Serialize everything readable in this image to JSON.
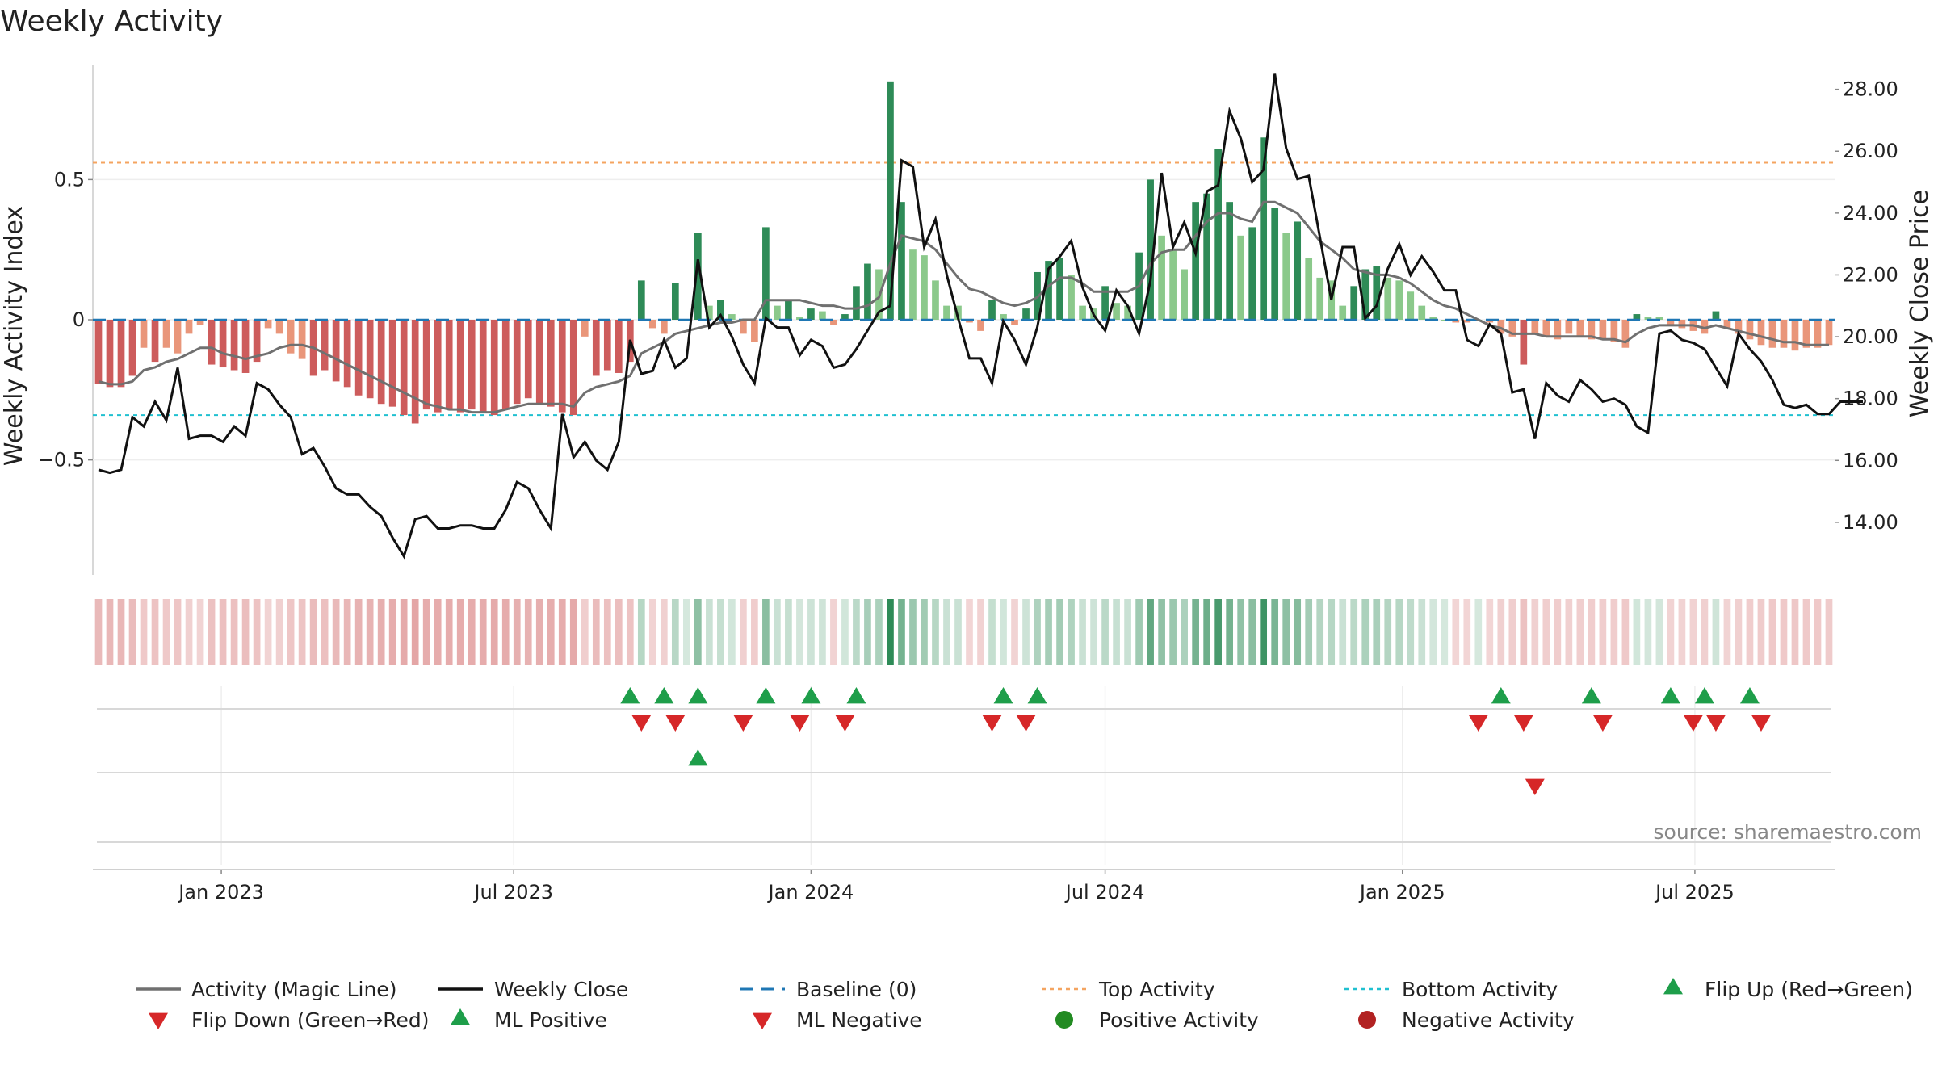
{
  "chart_data": {
    "type": "bar",
    "title": "Weekly Activity",
    "ylabel_left": "Weekly Activity Index",
    "ylabel_right": "Weekly Close Price",
    "source": "source: sharemaestro.com",
    "x_ticks": [
      "Jan 2023",
      "Jul 2023",
      "Jan 2024",
      "Jul 2024",
      "Jan 2025",
      "Jul 2025"
    ],
    "y_left_ticks": [
      {
        "value": 0.5,
        "label": "0.5"
      },
      {
        "value": 0.0,
        "label": "0"
      },
      {
        "value": -0.5,
        "label": "−0.5"
      }
    ],
    "y_right_ticks": [
      "14.00",
      "16.00",
      "18.00",
      "20.00",
      "22.00",
      "24.00",
      "26.00",
      "28.00"
    ],
    "ylim_left": [
      -0.91,
      0.91
    ],
    "ylim_right": [
      12.3,
      28.8
    ],
    "top_activity": 0.56,
    "bottom_activity": -0.34,
    "baseline": 0,
    "start_week": "2022-10-17",
    "activity": [
      -0.23,
      -0.24,
      -0.24,
      -0.2,
      -0.1,
      -0.15,
      -0.1,
      -0.12,
      -0.05,
      -0.02,
      -0.16,
      -0.17,
      -0.18,
      -0.19,
      -0.15,
      -0.03,
      -0.05,
      -0.12,
      -0.14,
      -0.2,
      -0.18,
      -0.22,
      -0.24,
      -0.27,
      -0.28,
      -0.3,
      -0.31,
      -0.34,
      -0.37,
      -0.32,
      -0.33,
      -0.32,
      -0.33,
      -0.32,
      -0.33,
      -0.34,
      -0.32,
      -0.3,
      -0.28,
      -0.3,
      -0.31,
      -0.33,
      -0.34,
      -0.06,
      -0.2,
      -0.18,
      -0.19,
      -0.15,
      0.14,
      -0.03,
      -0.05,
      0.13,
      0.0,
      0.31,
      0.05,
      0.07,
      0.02,
      -0.05,
      -0.08,
      0.33,
      0.05,
      0.07,
      0.01,
      0.04,
      0.03,
      -0.02,
      0.02,
      0.12,
      0.2,
      0.18,
      0.85,
      0.42,
      0.25,
      0.23,
      0.14,
      0.05,
      0.05,
      -0.01,
      -0.04,
      0.07,
      0.02,
      -0.02,
      0.04,
      0.17,
      0.21,
      0.22,
      0.16,
      0.05,
      0.04,
      0.12,
      0.06,
      0.05,
      0.24,
      0.5,
      0.3,
      0.25,
      0.18,
      0.42,
      0.45,
      0.61,
      0.42,
      0.3,
      0.33,
      0.65,
      0.4,
      0.31,
      0.35,
      0.22,
      0.15,
      0.14,
      0.05,
      0.12,
      0.18,
      0.19,
      0.15,
      0.14,
      0.1,
      0.05,
      0.01,
      0.0,
      -0.01,
      -0.01,
      0.0,
      -0.01,
      -0.05,
      -0.06,
      -0.16,
      -0.05,
      -0.06,
      -0.07,
      -0.05,
      -0.06,
      -0.07,
      -0.07,
      -0.08,
      -0.1,
      0.02,
      0.01,
      0.01,
      -0.02,
      -0.03,
      -0.04,
      -0.05,
      0.03,
      -0.03,
      -0.05,
      -0.07,
      -0.09,
      -0.1,
      -0.1,
      -0.11,
      -0.1,
      -0.1,
      -0.09
    ],
    "magic_line": [
      -0.22,
      -0.23,
      -0.23,
      -0.22,
      -0.18,
      -0.17,
      -0.15,
      -0.14,
      -0.12,
      -0.1,
      -0.1,
      -0.12,
      -0.13,
      -0.14,
      -0.13,
      -0.12,
      -0.1,
      -0.09,
      -0.09,
      -0.1,
      -0.12,
      -0.14,
      -0.16,
      -0.18,
      -0.2,
      -0.22,
      -0.24,
      -0.26,
      -0.28,
      -0.3,
      -0.31,
      -0.32,
      -0.32,
      -0.33,
      -0.33,
      -0.33,
      -0.32,
      -0.31,
      -0.3,
      -0.3,
      -0.3,
      -0.3,
      -0.31,
      -0.26,
      -0.24,
      -0.23,
      -0.22,
      -0.2,
      -0.12,
      -0.1,
      -0.08,
      -0.05,
      -0.04,
      -0.03,
      -0.02,
      -0.01,
      -0.01,
      0.0,
      0.0,
      0.07,
      0.07,
      0.07,
      0.07,
      0.06,
      0.05,
      0.05,
      0.04,
      0.04,
      0.05,
      0.08,
      0.2,
      0.3,
      0.29,
      0.28,
      0.25,
      0.2,
      0.15,
      0.11,
      0.1,
      0.08,
      0.06,
      0.05,
      0.06,
      0.08,
      0.12,
      0.15,
      0.15,
      0.13,
      0.1,
      0.1,
      0.1,
      0.1,
      0.12,
      0.2,
      0.24,
      0.25,
      0.25,
      0.3,
      0.35,
      0.38,
      0.38,
      0.36,
      0.35,
      0.42,
      0.42,
      0.4,
      0.38,
      0.33,
      0.28,
      0.25,
      0.22,
      0.18,
      0.17,
      0.16,
      0.16,
      0.15,
      0.13,
      0.1,
      0.07,
      0.05,
      0.04,
      0.02,
      0.0,
      -0.02,
      -0.03,
      -0.05,
      -0.05,
      -0.05,
      -0.06,
      -0.06,
      -0.06,
      -0.06,
      -0.06,
      -0.07,
      -0.07,
      -0.08,
      -0.05,
      -0.03,
      -0.02,
      -0.02,
      -0.02,
      -0.02,
      -0.03,
      -0.02,
      -0.03,
      -0.04,
      -0.05,
      -0.06,
      -0.07,
      -0.08,
      -0.08,
      -0.09,
      -0.09,
      -0.09
    ],
    "weekly_close": [
      15.7,
      15.6,
      15.7,
      17.4,
      17.1,
      17.9,
      17.3,
      19.0,
      16.7,
      16.8,
      16.8,
      16.6,
      17.1,
      16.8,
      18.5,
      18.3,
      17.8,
      17.4,
      16.2,
      16.4,
      15.8,
      15.1,
      14.9,
      14.9,
      14.5,
      14.2,
      13.5,
      12.9,
      14.1,
      14.2,
      13.8,
      13.8,
      13.9,
      13.9,
      13.8,
      13.8,
      14.4,
      15.3,
      15.1,
      14.4,
      13.8,
      17.5,
      16.1,
      16.6,
      16.0,
      15.7,
      16.6,
      19.9,
      18.8,
      18.9,
      19.9,
      19.0,
      19.3,
      22.5,
      20.3,
      20.7,
      20.0,
      19.1,
      18.5,
      20.6,
      20.3,
      20.3,
      19.4,
      19.9,
      19.7,
      19.0,
      19.1,
      19.6,
      20.2,
      20.8,
      21.0,
      25.7,
      25.5,
      22.9,
      23.8,
      22.0,
      20.6,
      19.3,
      19.3,
      18.5,
      20.5,
      19.9,
      19.1,
      20.3,
      22.2,
      22.6,
      23.1,
      21.6,
      20.7,
      20.2,
      21.5,
      21.0,
      20.1,
      21.8,
      25.3,
      22.9,
      23.7,
      22.7,
      24.7,
      24.9,
      27.3,
      26.4,
      25.0,
      25.4,
      28.5,
      26.1,
      25.1,
      25.2,
      23.2,
      21.2,
      22.9,
      22.9,
      20.6,
      21.0,
      22.2,
      23.0,
      22.0,
      22.6,
      22.1,
      21.5,
      21.5,
      19.9,
      19.7,
      20.4,
      20.1,
      18.2,
      18.3,
      16.7,
      18.5,
      18.1,
      17.9,
      18.6,
      18.3,
      17.9,
      18.0,
      17.8,
      17.1,
      16.9,
      20.1,
      20.2,
      19.9,
      19.8,
      19.6,
      19.0,
      18.4,
      20.1,
      19.6,
      19.2,
      18.6,
      17.8,
      17.7,
      17.8,
      17.5,
      17.5,
      17.9,
      17.9,
      17.9
    ],
    "flip_up_weeks": [
      47,
      50,
      53,
      59,
      63,
      67,
      80,
      83,
      124,
      132,
      139,
      142,
      146
    ],
    "flip_down_weeks": [
      48,
      51,
      57,
      62,
      66,
      79,
      82,
      122,
      126,
      133,
      141,
      143,
      147
    ],
    "ml_positive_weeks": [
      53
    ],
    "ml_negative_weeks": [
      127
    ],
    "legend": [
      "Activity (Magic Line)",
      "Weekly Close",
      "Baseline (0)",
      "Top Activity",
      "Bottom Activity",
      "Flip Up (Red→Green)",
      "Flip Down (Green→Red)",
      "ML Positive",
      "ML Negative",
      "Positive Activity",
      "Negative Activity"
    ]
  },
  "colors": {
    "pos_strong": "#2e8b57",
    "pos_light": "#8bc98b",
    "neg_strong": "#cd5c5c",
    "neg_light": "#e9967a",
    "magic_line": "#707070",
    "close": "#111111",
    "baseline": "#1f77b4",
    "top": "#f4a460",
    "bottom": "#20c0d0",
    "marker_up": "#1e9e4a",
    "marker_down": "#d62728",
    "dot_pos": "#228b22",
    "dot_neg": "#b22222"
  }
}
